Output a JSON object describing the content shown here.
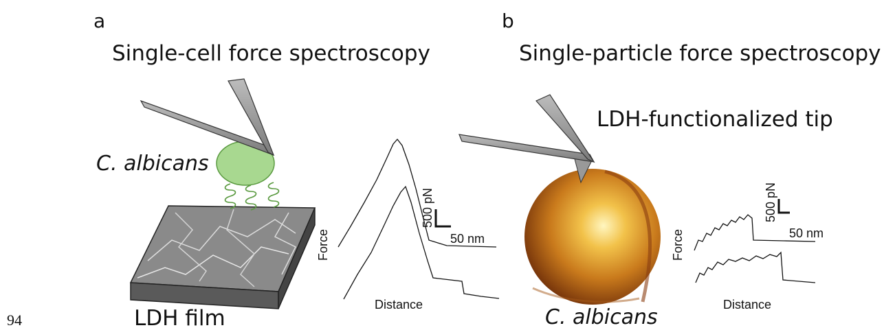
{
  "line_number": "94",
  "panel_a": {
    "label": "a",
    "title": "Single-cell force spectroscopy",
    "cell_label": "C. albicans",
    "substrate_label": "LDH film",
    "y_axis_label": "Force",
    "x_axis_label": "Distance",
    "force_scale": "500 pN",
    "distance_scale": "50 nm"
  },
  "panel_b": {
    "label": "b",
    "title": "Single-particle force spectroscopy",
    "tip_label": "LDH-functionalized tip",
    "cell_label": "C. albicans",
    "y_axis_label": "Force",
    "x_axis_label": "Distance",
    "force_scale": "500 pN",
    "distance_scale": "50 nm"
  }
}
